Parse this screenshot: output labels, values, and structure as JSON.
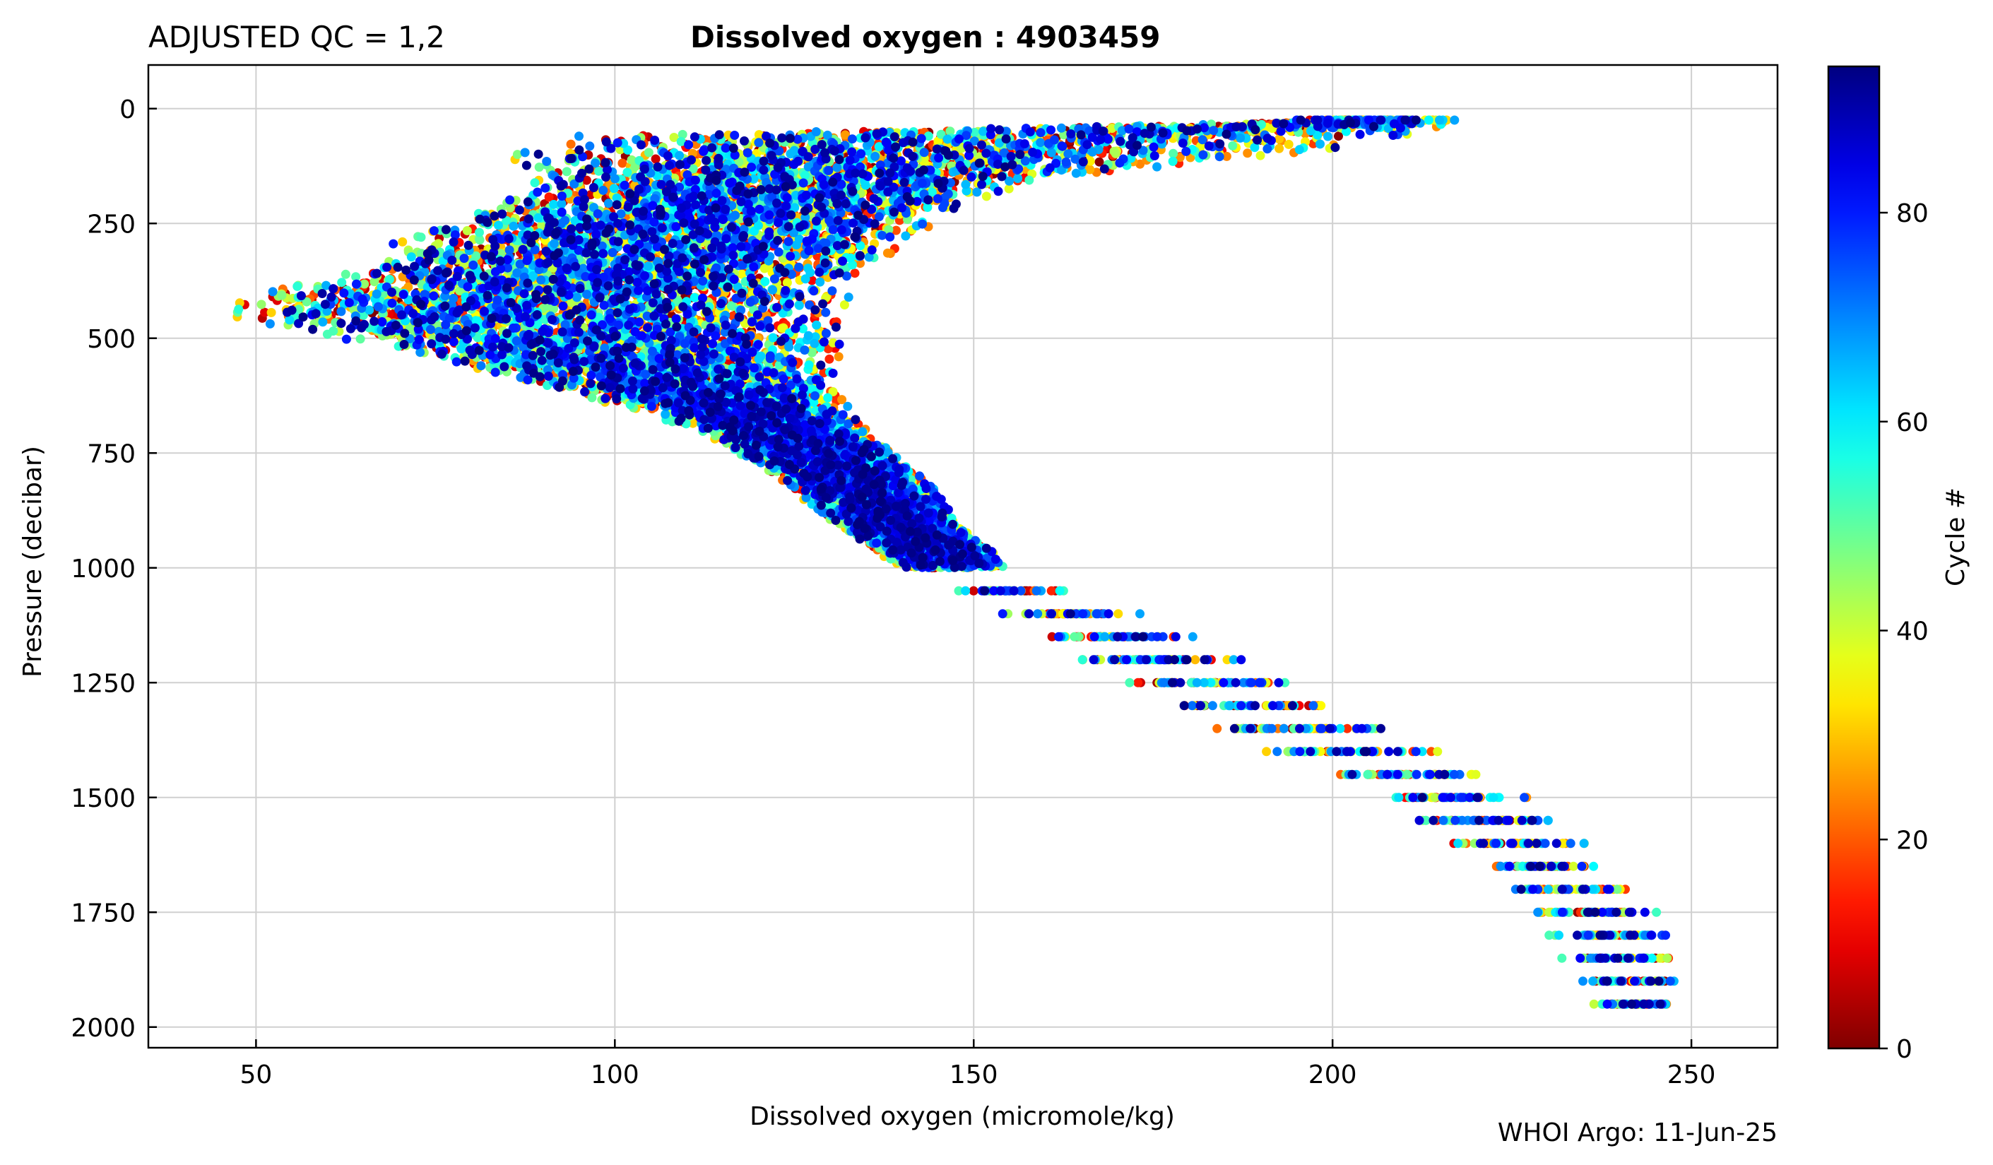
{
  "chart_data": {
    "type": "scatter",
    "title": "Dissolved oxygen : 4903459",
    "subtitle": "ADJUSTED QC = 1,2",
    "xlabel": "Dissolved oxygen  (micromole/kg)",
    "ylabel": "Pressure  (decibar)",
    "footer": "WHOI Argo: 11-Jun-25",
    "xlim": [
      35,
      262
    ],
    "ylim": [
      2045,
      -95
    ],
    "y_inverted": true,
    "grid": true,
    "x_ticks": [
      "50",
      "100",
      "150",
      "200",
      "250"
    ],
    "y_ticks": [
      "0",
      "250",
      "500",
      "750",
      "1000",
      "1250",
      "1500",
      "1750",
      "2000"
    ],
    "colorbar": {
      "label": "Cycle #",
      "range": [
        0,
        94
      ],
      "ticks": [
        "0",
        "20",
        "40",
        "60",
        "80"
      ],
      "colormap": "jet"
    },
    "profile_envelope": {
      "description_units": "pressure (decibar) vs oxygen min/max (micromole/kg)",
      "pressure": [
        30,
        60,
        100,
        150,
        200,
        250,
        300,
        350,
        400,
        425,
        450,
        500,
        600,
        700,
        800,
        900,
        1000,
        1050,
        1100,
        1150,
        1200,
        1250,
        1300,
        1350,
        1400,
        1450,
        1500,
        1550,
        1600,
        1650,
        1700,
        1750,
        1800,
        1850,
        1900,
        1950
      ],
      "o2_min": [
        195,
        95,
        85,
        90,
        85,
        78,
        68,
        65,
        50,
        45,
        46,
        62,
        90,
        112,
        122,
        130,
        140,
        146,
        152,
        157,
        162,
        167,
        172,
        180,
        188,
        195,
        202,
        208,
        213,
        218,
        223,
        226,
        228,
        230,
        232,
        234
      ],
      "o2_max": [
        217,
        210,
        195,
        160,
        150,
        145,
        140,
        135,
        133,
        132,
        132,
        132,
        130,
        135,
        143,
        148,
        155,
        165,
        175,
        183,
        190,
        197,
        204,
        212,
        218,
        224,
        230,
        235,
        238,
        241,
        244,
        248,
        250,
        252,
        250,
        249
      ]
    }
  }
}
